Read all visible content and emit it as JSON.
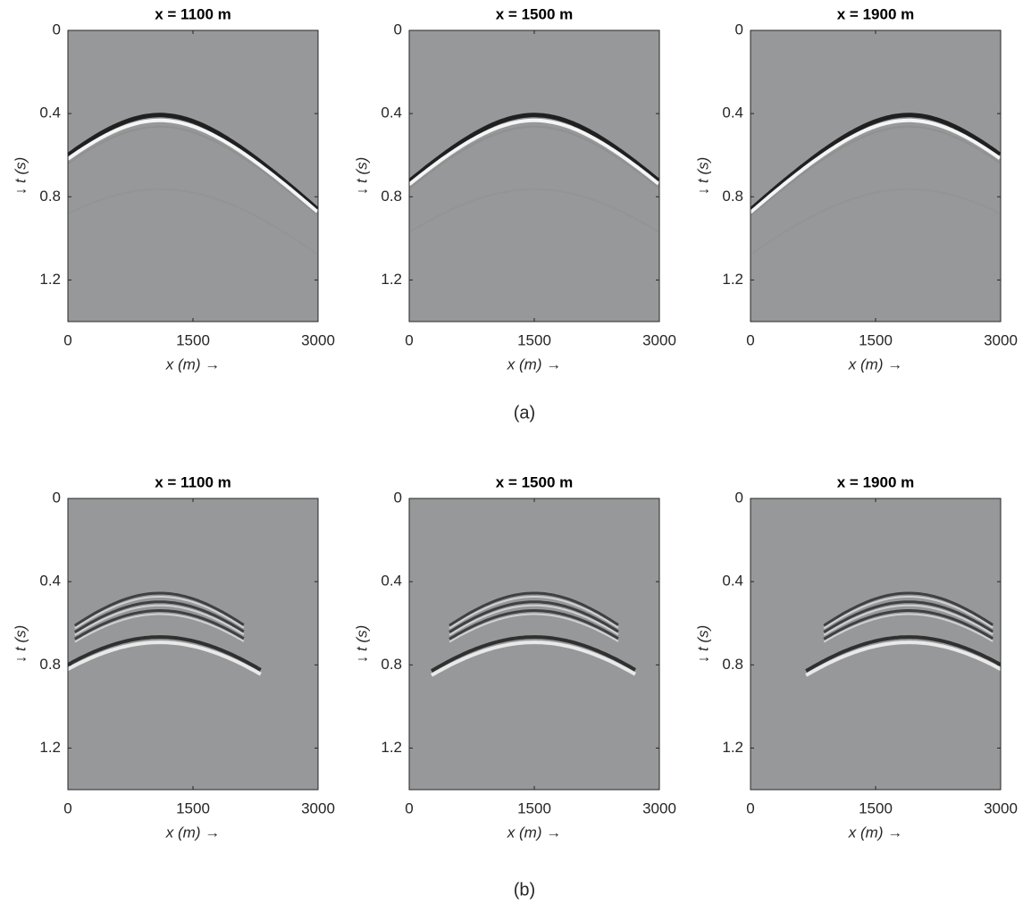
{
  "chart_data": [
    {
      "type": "image",
      "title": "x = 1100 m",
      "xlabel": "x (m)  →",
      "ylabel": "↓ t (s)",
      "xlim": [
        0,
        3000
      ],
      "ylim": [
        1.4,
        0
      ],
      "xticks": [
        0,
        1500,
        3000
      ],
      "yticks": [
        0,
        0.4,
        0.8,
        1.2
      ]
    },
    {
      "type": "image",
      "title": "x = 1500 m",
      "xlabel": "x (m)  →",
      "ylabel": "↓ t (s)",
      "xlim": [
        0,
        3000
      ],
      "ylim": [
        1.4,
        0
      ],
      "xticks": [
        0,
        1500,
        3000
      ],
      "yticks": [
        0,
        0.4,
        0.8,
        1.2
      ]
    },
    {
      "type": "image",
      "title": "x = 1900 m",
      "xlabel": "x (m)  →",
      "ylabel": "↓ t (s)",
      "xlim": [
        0,
        3000
      ],
      "ylim": [
        1.4,
        0
      ],
      "xticks": [
        0,
        1500,
        3000
      ],
      "yticks": [
        0,
        0.4,
        0.8,
        1.2
      ]
    },
    {
      "type": "image",
      "title": "x = 1100 m",
      "xlabel": "x (m)  →",
      "ylabel": "↓ t (s)",
      "xlim": [
        0,
        3000
      ],
      "ylim": [
        1.4,
        0
      ],
      "xticks": [
        0,
        1500,
        3000
      ],
      "yticks": [
        0,
        0.4,
        0.8,
        1.2
      ]
    },
    {
      "type": "image",
      "title": "x = 1500 m",
      "xlabel": "x (m)  →",
      "ylabel": "↓ t (s)",
      "xlim": [
        0,
        3000
      ],
      "ylim": [
        1.4,
        0
      ],
      "xticks": [
        0,
        1500,
        3000
      ],
      "yticks": [
        0,
        0.4,
        0.8,
        1.2
      ]
    },
    {
      "type": "image",
      "title": "x = 1900 m",
      "xlabel": "x (m)  →",
      "ylabel": "↓ t (s)",
      "xlim": [
        0,
        3000
      ],
      "ylim": [
        1.4,
        0
      ],
      "xticks": [
        0,
        1500,
        3000
      ],
      "yticks": [
        0,
        0.4,
        0.8,
        1.2
      ]
    }
  ],
  "panel_labels": [
    "(a)",
    "(b)"
  ]
}
